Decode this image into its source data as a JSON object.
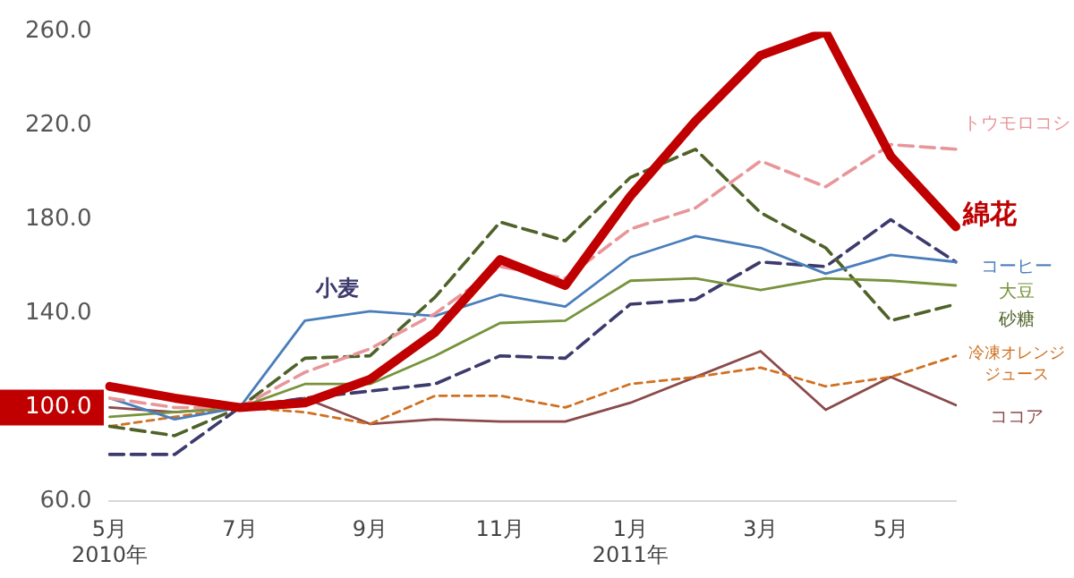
{
  "chart_data": {
    "type": "line",
    "categories": [
      "5月\n2010年",
      null,
      "7月",
      null,
      "9月",
      null,
      "11月",
      null,
      "1月\n2011年",
      null,
      "3月",
      null,
      "5月",
      null
    ],
    "ylim": [
      60,
      260
    ],
    "yticks": [
      {
        "value": 60,
        "label": "60.0"
      },
      {
        "value": 100,
        "label": "100.0"
      },
      {
        "value": 140,
        "label": "140.0"
      },
      {
        "value": 180,
        "label": "180.0"
      },
      {
        "value": 220,
        "label": "220.0"
      },
      {
        "value": 260,
        "label": "260.0"
      }
    ],
    "grid": false,
    "legend": false,
    "marker": "none",
    "series": [
      {
        "name": "綿花",
        "color": "#c00000",
        "line_style": "solid",
        "values": [
          109,
          104,
          100,
          102,
          112,
          132,
          163,
          152,
          190,
          222,
          250,
          260,
          207,
          177
        ]
      },
      {
        "name": "トウモロコシ",
        "color": "#e8969a",
        "line_style": "dashed",
        "values": [
          104,
          100,
          100,
          115,
          125,
          140,
          160,
          155,
          176,
          185,
          205,
          194,
          212,
          210
        ]
      },
      {
        "name": "コーヒー",
        "color": "#4a7ebb",
        "line_style": "solid",
        "values": [
          104,
          95,
          100,
          137,
          141,
          139,
          148,
          143,
          164,
          173,
          168,
          157,
          165,
          162
        ]
      },
      {
        "name": "大豆",
        "color": "#77933c",
        "line_style": "solid",
        "values": [
          96,
          98,
          100,
          110,
          110,
          122,
          136,
          137,
          154,
          155,
          150,
          155,
          154,
          152
        ]
      },
      {
        "name": "砂糖",
        "color": "#4f6228",
        "line_style": "dashed",
        "values": [
          92,
          88,
          100,
          121,
          122,
          147,
          179,
          171,
          198,
          210,
          183,
          168,
          137,
          144
        ]
      },
      {
        "name": "小麦",
        "color": "#3d3a6e",
        "line_style": "dashed",
        "values": [
          80,
          80,
          100,
          104,
          107,
          110,
          122,
          121,
          144,
          146,
          162,
          160,
          180,
          162
        ]
      },
      {
        "name": "冷凍オレンジジュース",
        "color": "#d07020",
        "line_style": "dotted",
        "values": [
          92,
          96,
          100,
          98,
          93,
          105,
          105,
          100,
          110,
          113,
          117,
          109,
          113,
          122
        ]
      },
      {
        "name": "ココア",
        "color": "#8b4a4a",
        "line_style": "solid",
        "values": [
          100,
          98,
          100,
          104,
          93,
          95,
          94,
          94,
          102,
          113,
          124,
          99,
          113,
          101
        ]
      }
    ]
  }
}
